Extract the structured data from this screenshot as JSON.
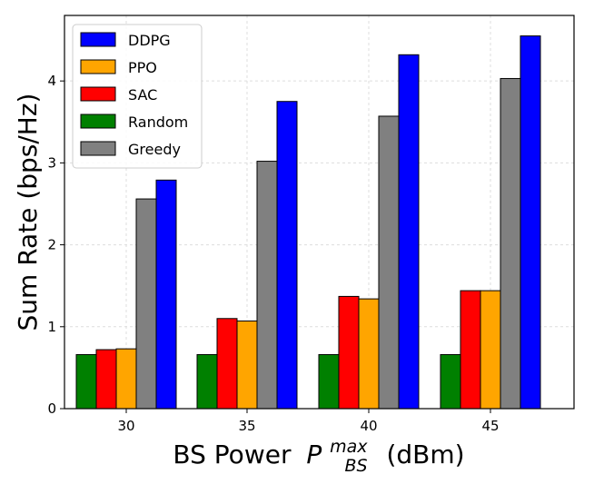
{
  "chart_data": {
    "type": "bar",
    "title": "",
    "xlabel": "BS Power",
    "xlabel_symbol": "P",
    "xlabel_superscript": "max",
    "xlabel_subscript": "BS",
    "xlabel_unit": "(dBm)",
    "ylabel": "Sum Rate (bps/Hz)",
    "categories": [
      "30",
      "35",
      "40",
      "45"
    ],
    "ylim": [
      0,
      4.8
    ],
    "yticks": [
      "0",
      "1",
      "2",
      "3",
      "4"
    ],
    "grid": true,
    "legend_position": "top-left",
    "series": [
      {
        "name": "Random",
        "color": "#008000",
        "values": [
          0.66,
          0.66,
          0.66,
          0.66
        ]
      },
      {
        "name": "SAC",
        "color": "#ff0000",
        "values": [
          0.72,
          1.1,
          1.37,
          1.44
        ]
      },
      {
        "name": "PPO",
        "color": "#ffa500",
        "values": [
          0.73,
          1.07,
          1.34,
          1.44
        ]
      },
      {
        "name": "Greedy",
        "color": "#808080",
        "values": [
          2.56,
          3.02,
          3.57,
          4.03
        ]
      },
      {
        "name": "DDPG",
        "color": "#0000ff",
        "values": [
          2.79,
          3.75,
          4.32,
          4.55
        ]
      }
    ],
    "legend_order": [
      "DDPG",
      "PPO",
      "SAC",
      "Random",
      "Greedy"
    ]
  }
}
